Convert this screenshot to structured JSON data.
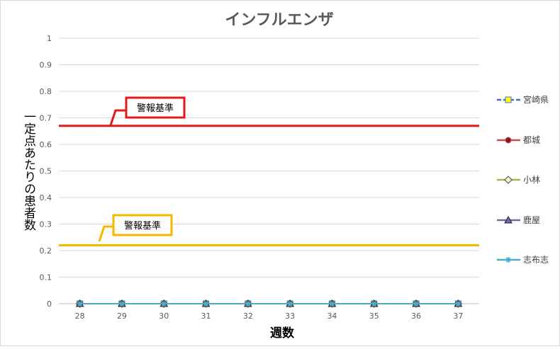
{
  "chart_data": {
    "type": "line",
    "title": "インフルエンザ",
    "xlabel": "週数",
    "ylabel": "一定点あたりの患者数",
    "x": [
      28,
      29,
      30,
      31,
      32,
      33,
      34,
      35,
      36,
      37
    ],
    "ylim": [
      0,
      1
    ],
    "yticks": [
      0,
      0.1,
      0.2,
      0.3,
      0.4,
      0.5,
      0.6,
      0.7,
      0.8,
      0.9,
      1
    ],
    "grid": true,
    "legend_position": "right",
    "series": [
      {
        "name": "宮崎県",
        "values": [
          0,
          0,
          0,
          0,
          0,
          0,
          0,
          0,
          0,
          0
        ],
        "color": "#4472c4",
        "marker": "square",
        "marker_fill": "#ffff00",
        "dash": true
      },
      {
        "name": "都城",
        "values": [
          0,
          0,
          0,
          0,
          0,
          0,
          0,
          0,
          0,
          0
        ],
        "color": "#c0504d",
        "marker": "circle",
        "marker_fill": "#8b1a1a",
        "dash": false
      },
      {
        "name": "小林",
        "values": [
          0,
          0,
          0,
          0,
          0,
          0,
          0,
          0,
          0,
          0
        ],
        "color": "#9bbb59",
        "marker": "diamond",
        "marker_fill": "#ffffcc",
        "dash": false
      },
      {
        "name": "鹿屋",
        "values": [
          0,
          0,
          0,
          0,
          0,
          0,
          0,
          0,
          0,
          0
        ],
        "color": "#8064a2",
        "marker": "triangle",
        "marker_fill": "#6a6aa8",
        "dash": false
      },
      {
        "name": "志布志",
        "values": [
          0,
          0,
          0,
          0,
          0,
          0,
          0,
          0,
          0,
          0
        ],
        "color": "#4bacc6",
        "marker": "star",
        "marker_fill": "#4bacc6",
        "dash": false
      }
    ],
    "reference_lines": [
      {
        "label": "警報基準",
        "value": 0.67,
        "color": "#e31a1c"
      },
      {
        "label": "警報基準",
        "value": 0.22,
        "color": "#f5b800"
      }
    ]
  }
}
